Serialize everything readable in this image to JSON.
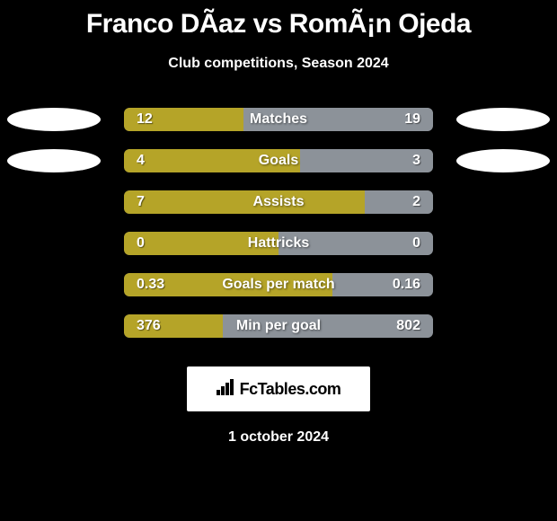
{
  "title": "Franco DÃ­az vs RomÃ¡n Ojeda",
  "subtitle": "Club competitions, Season 2024",
  "date": "1 october 2024",
  "fctables_label": "FcTables.com",
  "colors": {
    "left_bar": "#b5a428",
    "right_bar": "#8c9299",
    "bg_bar": "#8c9299",
    "badge_bg": "#ffffff",
    "background": "#000000"
  },
  "stats": [
    {
      "label": "Matches",
      "left_value": "12",
      "right_value": "19",
      "left_pct": 38.7,
      "right_pct": 61.3,
      "show_badge": true
    },
    {
      "label": "Goals",
      "left_value": "4",
      "right_value": "3",
      "left_pct": 57.1,
      "right_pct": 42.9,
      "show_badge": true
    },
    {
      "label": "Assists",
      "left_value": "7",
      "right_value": "2",
      "left_pct": 77.8,
      "right_pct": 22.2,
      "show_badge": false
    },
    {
      "label": "Hattricks",
      "left_value": "0",
      "right_value": "0",
      "left_pct": 50,
      "right_pct": 50,
      "show_badge": false
    },
    {
      "label": "Goals per match",
      "left_value": "0.33",
      "right_value": "0.16",
      "left_pct": 67.3,
      "right_pct": 32.7,
      "show_badge": false
    },
    {
      "label": "Min per goal",
      "left_value": "376",
      "right_value": "802",
      "left_pct": 31.9,
      "right_pct": 68.1,
      "show_badge": false
    }
  ]
}
